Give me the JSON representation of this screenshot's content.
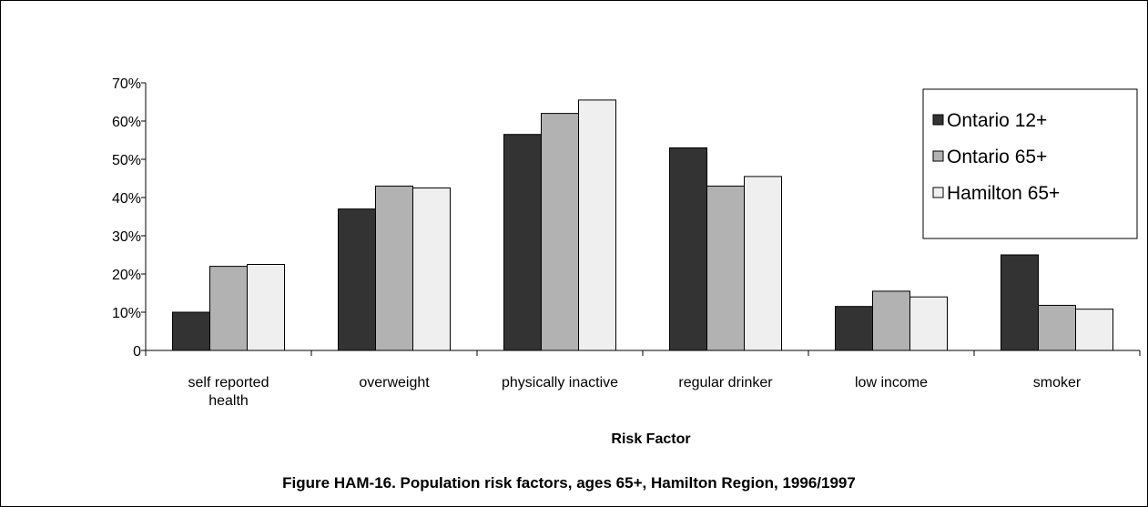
{
  "chart_data": {
    "type": "bar",
    "categories": [
      [
        "self reported",
        "health"
      ],
      [
        "overweight"
      ],
      [
        "physically inactive"
      ],
      [
        "regular drinker"
      ],
      [
        "low income"
      ],
      [
        "smoker"
      ]
    ],
    "series": [
      {
        "name": "Ontario 12+",
        "color": "#333333",
        "values": [
          10,
          37,
          56.5,
          53,
          11.5,
          25
        ]
      },
      {
        "name": "Ontario 65+",
        "color": "#b2b2b2",
        "values": [
          22,
          43,
          62,
          43,
          15.5,
          11.8
        ]
      },
      {
        "name": "Hamilton 65+",
        "color": "#efefef",
        "values": [
          22.5,
          42.5,
          65.5,
          45.5,
          14,
          10.8
        ]
      }
    ],
    "yticks": [
      "0",
      "10%",
      "20%",
      "30%",
      "40%",
      "50%",
      "60%",
      "70%"
    ],
    "ylim": [
      0,
      70
    ],
    "xlabel": "Risk Factor",
    "caption": "Figure HAM-16.  Population risk factors, ages 65+, Hamilton Region, 1996/1997",
    "legend_position": "top-right"
  }
}
